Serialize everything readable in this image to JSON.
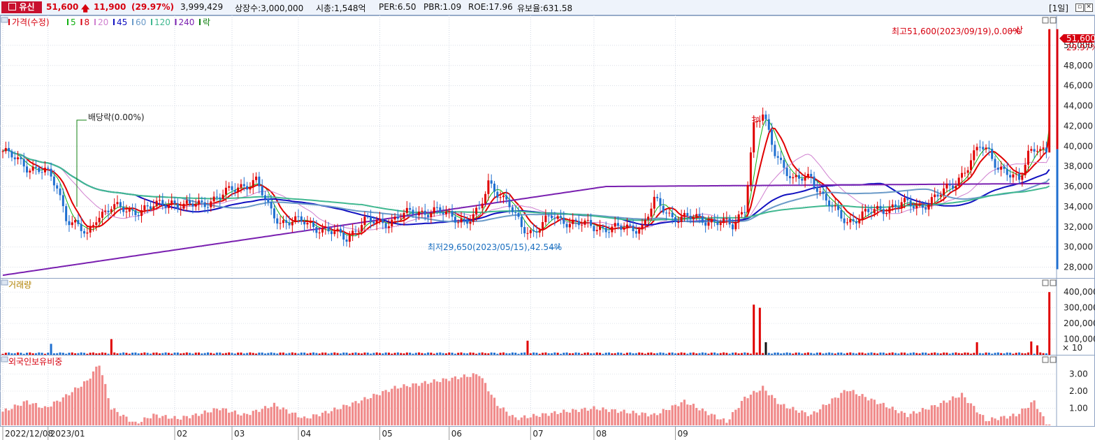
{
  "header": {
    "name": "유신",
    "price": "51,600",
    "change": "11,900",
    "change_pct": "(29.97%)",
    "volume": "3,999,429",
    "shares": "상장수:3,000,000",
    "mcap": "시총:1,548억",
    "per": "PER:6.50",
    "pbr": "PBR:1.09",
    "roe": "ROE:17.96",
    "reserve": "유보율:631.58",
    "period": "[1일]",
    "arrow_icon": "up-arrow-icon"
  },
  "price_panel": {
    "legend": [
      {
        "label": "가격(수정)",
        "color": "#d6000f"
      },
      {
        "label": "5",
        "color": "#10b010"
      },
      {
        "label": "8",
        "color": "#d6000f"
      },
      {
        "label": "20",
        "color": "#d080d0"
      },
      {
        "label": "45",
        "color": "#1010c0"
      },
      {
        "label": "60",
        "color": "#6a9ac8"
      },
      {
        "label": "120",
        "color": "#40b890"
      },
      {
        "label": "240",
        "color": "#7a20b0"
      },
      {
        "label": "락",
        "color": "#108010"
      }
    ],
    "current_price_label": "51,600",
    "current_pct_label": "29.97%",
    "annotations": {
      "high": "최고51,600(2023/09/19),0.00%",
      "high_tag": "상",
      "low": "최저29,650(2023/05/15),42.54%",
      "dividend": "배당락(0.00%)",
      "upper_limit_july": "상"
    }
  },
  "volume_panel": {
    "title": "거래량",
    "multiplier": "× 10"
  },
  "foreign_panel": {
    "title": "외국인보유비중"
  },
  "chart_data": [
    {
      "type": "candlestick",
      "title": "가격(수정)",
      "ylim": [
        27000,
        52000
      ],
      "yticks": [
        28000,
        30000,
        32000,
        34000,
        36000,
        38000,
        40000,
        42000,
        44000,
        46000,
        48000,
        50000
      ],
      "ytick_labels": [
        "28,000",
        "30,000",
        "32,000",
        "34,000",
        "36,000",
        "38,000",
        "40,000",
        "42,000",
        "44,000",
        "46,000",
        "48,000",
        "50,000"
      ],
      "xtick_labels": [
        "2022/12/08",
        "2023/01",
        "02",
        "03",
        "04",
        "05",
        "06",
        "07",
        "08",
        "09"
      ],
      "keypoints": [
        [
          0,
          39500
        ],
        [
          8,
          38000
        ],
        [
          14,
          37500
        ],
        [
          18,
          36000
        ],
        [
          21,
          33000
        ],
        [
          25,
          32000
        ],
        [
          28,
          31000
        ],
        [
          31,
          33000
        ],
        [
          36,
          34000
        ],
        [
          42,
          33500
        ],
        [
          50,
          34000
        ],
        [
          56,
          34500
        ],
        [
          60,
          34000
        ],
        [
          66,
          34300
        ],
        [
          72,
          35000
        ],
        [
          78,
          36000
        ],
        [
          84,
          36500
        ],
        [
          88,
          34000
        ],
        [
          92,
          32500
        ],
        [
          100,
          32500
        ],
        [
          108,
          31500
        ],
        [
          114,
          31000
        ],
        [
          120,
          32500
        ],
        [
          128,
          32500
        ],
        [
          136,
          33500
        ],
        [
          144,
          33500
        ],
        [
          150,
          33000
        ],
        [
          154,
          32500
        ],
        [
          158,
          33500
        ],
        [
          161,
          36500
        ],
        [
          164,
          35500
        ],
        [
          168,
          34000
        ],
        [
          172,
          32000
        ],
        [
          176,
          31500
        ],
        [
          182,
          33000
        ],
        [
          188,
          32500
        ],
        [
          196,
          32000
        ],
        [
          204,
          31800
        ],
        [
          212,
          32000
        ],
        [
          216,
          34500
        ],
        [
          222,
          33000
        ],
        [
          230,
          32800
        ],
        [
          238,
          32500
        ],
        [
          242,
          32000
        ],
        [
          246,
          34000
        ],
        [
          249,
          42000
        ],
        [
          252,
          43000
        ],
        [
          256,
          39500
        ],
        [
          262,
          36500
        ],
        [
          268,
          37000
        ],
        [
          272,
          35000
        ],
        [
          276,
          33500
        ],
        [
          280,
          32500
        ],
        [
          286,
          33300
        ],
        [
          292,
          33800
        ],
        [
          298,
          34300
        ],
        [
          304,
          34000
        ],
        [
          310,
          35000
        ],
        [
          316,
          36500
        ],
        [
          320,
          38000
        ],
        [
          324,
          40000
        ],
        [
          327,
          39500
        ],
        [
          330,
          38000
        ],
        [
          334,
          37000
        ],
        [
          337,
          36500
        ],
        [
          340,
          39500
        ],
        [
          343,
          40000
        ],
        [
          346,
          39000
        ],
        [
          347,
          51600
        ]
      ],
      "volume_ylim": [
        0,
        450000
      ],
      "volume_yticks": [
        "100,000",
        "200,000",
        "300,000",
        "400,000"
      ],
      "foreign_ylim": [
        0,
        3.8
      ],
      "foreign_yticks": [
        "1.00",
        "2.00",
        "3.00"
      ]
    }
  ]
}
